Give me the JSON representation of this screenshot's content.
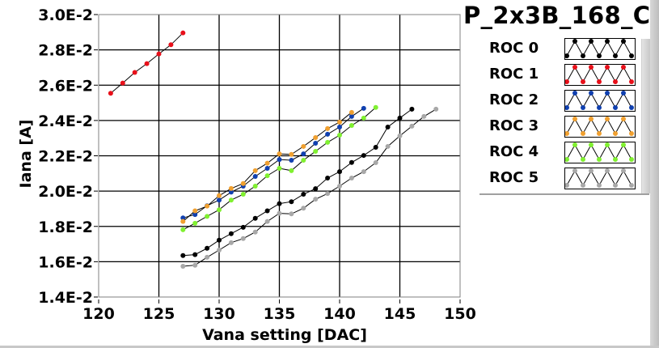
{
  "chart_data": {
    "type": "line",
    "title": "P_2x3B_168_C",
    "xlabel": "Vana setting [DAC]",
    "ylabel": "Iana [A]",
    "xlim": [
      120,
      150
    ],
    "ylim": [
      0.014,
      0.03
    ],
    "x_ticks": [
      120,
      125,
      130,
      135,
      140,
      145,
      150
    ],
    "x_tick_labels": [
      "120",
      "125",
      "130",
      "135",
      "140",
      "145",
      "150"
    ],
    "y_ticks": [
      0.014,
      0.016,
      0.018,
      0.02,
      0.022,
      0.024,
      0.026,
      0.028,
      0.03
    ],
    "y_tick_labels": [
      "1.4E-2",
      "1.6E-2",
      "1.8E-2",
      "2.0E-2",
      "2.2E-2",
      "2.4E-2",
      "2.6E-2",
      "2.8E-2",
      "3.0E-2"
    ],
    "grid": true,
    "legend_position": "right",
    "series": [
      {
        "name": "ROC 0",
        "color": "#000000",
        "x": [
          127,
          128,
          129,
          130,
          131,
          132,
          133,
          134,
          135,
          136,
          137,
          138,
          139,
          140,
          141,
          142,
          143,
          144,
          145,
          146
        ],
        "y": [
          0.01635,
          0.0164,
          0.01676,
          0.01722,
          0.01759,
          0.01795,
          0.01846,
          0.01888,
          0.01929,
          0.0194,
          0.01982,
          0.02014,
          0.02074,
          0.0211,
          0.02162,
          0.02202,
          0.02248,
          0.02363,
          0.02414,
          0.02464
        ]
      },
      {
        "name": "ROC 1",
        "color": "#e8101a",
        "x": [
          121,
          122,
          123,
          124,
          125,
          126,
          127
        ],
        "y": [
          0.02554,
          0.02612,
          0.02672,
          0.02722,
          0.02777,
          0.02829,
          0.02896
        ]
      },
      {
        "name": "ROC 2",
        "color": "#1040b0",
        "x": [
          127,
          128,
          129,
          130,
          131,
          132,
          133,
          134,
          135,
          136,
          137,
          138,
          139,
          140,
          141,
          142
        ],
        "y": [
          0.01848,
          0.01867,
          0.01917,
          0.01949,
          0.01994,
          0.02028,
          0.02083,
          0.02129,
          0.02179,
          0.02175,
          0.02211,
          0.02271,
          0.02322,
          0.02363,
          0.02423,
          0.02469
        ]
      },
      {
        "name": "ROC 3",
        "color": "#f0a030",
        "x": [
          127,
          128,
          129,
          130,
          131,
          132,
          133,
          134,
          135,
          136,
          137,
          138,
          139,
          140,
          141
        ],
        "y": [
          0.01828,
          0.01888,
          0.01915,
          0.01974,
          0.02015,
          0.02043,
          0.02116,
          0.02158,
          0.02211,
          0.02208,
          0.02253,
          0.02303,
          0.02354,
          0.02391,
          0.02446
        ]
      },
      {
        "name": "ROC 4",
        "color": "#80f030",
        "x": [
          127,
          128,
          129,
          130,
          131,
          132,
          133,
          134,
          135,
          136,
          137,
          138,
          139,
          140,
          141,
          142,
          143
        ],
        "y": [
          0.01781,
          0.01818,
          0.01857,
          0.01894,
          0.01949,
          0.01982,
          0.02028,
          0.02087,
          0.02129,
          0.02116,
          0.02175,
          0.02225,
          0.02276,
          0.02317,
          0.02372,
          0.02414,
          0.02474
        ]
      },
      {
        "name": "ROC 5",
        "color": "#a8a8a8",
        "x": [
          127,
          128,
          129,
          130,
          131,
          132,
          133,
          134,
          135,
          136,
          137,
          138,
          139,
          140,
          141,
          142,
          143,
          144,
          145,
          146,
          147,
          148
        ],
        "y": [
          0.01574,
          0.0158,
          0.01625,
          0.01666,
          0.01708,
          0.01731,
          0.01768,
          0.01828,
          0.01874,
          0.01871,
          0.01903,
          0.01954,
          0.01986,
          0.02028,
          0.02074,
          0.0211,
          0.02161,
          0.02253,
          0.02313,
          0.02368,
          0.02423,
          0.02464
        ]
      }
    ]
  }
}
